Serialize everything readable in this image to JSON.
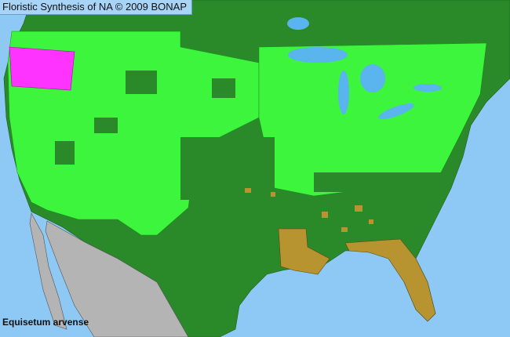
{
  "header": {
    "title": "Floristic Synthesis of NA © 2009 BONAP"
  },
  "map": {
    "species_label": "Equisetum arvense",
    "colors": {
      "ocean": "#8ec8f4",
      "land_absent": "#2a8a2a",
      "present": "#3cf53c",
      "noxious_or_special": "#ff33ff",
      "rare_or_extirpated": "#b89430",
      "outside_range": "#b4b4b4",
      "lakes": "#5ab4ee"
    }
  }
}
